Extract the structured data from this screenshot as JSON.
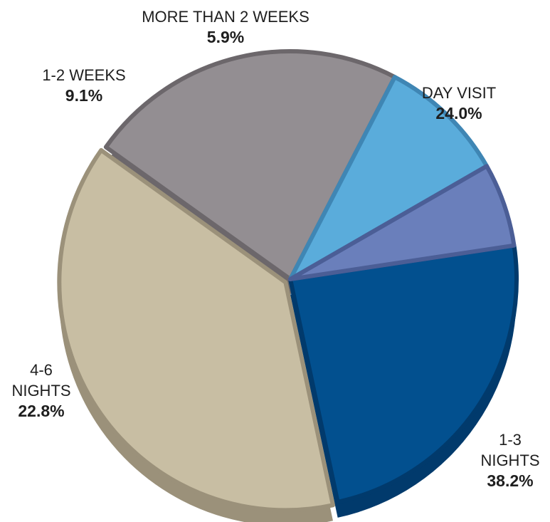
{
  "chart_data": {
    "type": "pie",
    "categories": [
      "DAY VISIT",
      "1-3 NIGHTS",
      "4-6 NIGHTS",
      "1-2 WEEKS",
      "MORE THAN 2 WEEKS"
    ],
    "values": [
      24.0,
      38.2,
      22.8,
      9.1,
      5.9
    ],
    "value_labels": [
      "24.0%",
      "38.2%",
      "22.8%",
      "9.1%",
      "5.9%"
    ],
    "label_lines": [
      [
        "DAY VISIT"
      ],
      [
        "1-3",
        "NIGHTS"
      ],
      [
        "4-6",
        "NIGHTS"
      ],
      [
        "1-2 WEEKS"
      ],
      [
        "MORE THAN 2 WEEKS"
      ]
    ],
    "colors": [
      "#02508f",
      "#c8bea3",
      "#938e92",
      "#5aacdb",
      "#6a7fbb"
    ],
    "edge_colors": [
      "#013a6c",
      "#9b917a",
      "#6c676b",
      "#3f86b4",
      "#4b5e96"
    ],
    "start_angle_deg": -8.5,
    "style": "3d-tilted-pie"
  }
}
